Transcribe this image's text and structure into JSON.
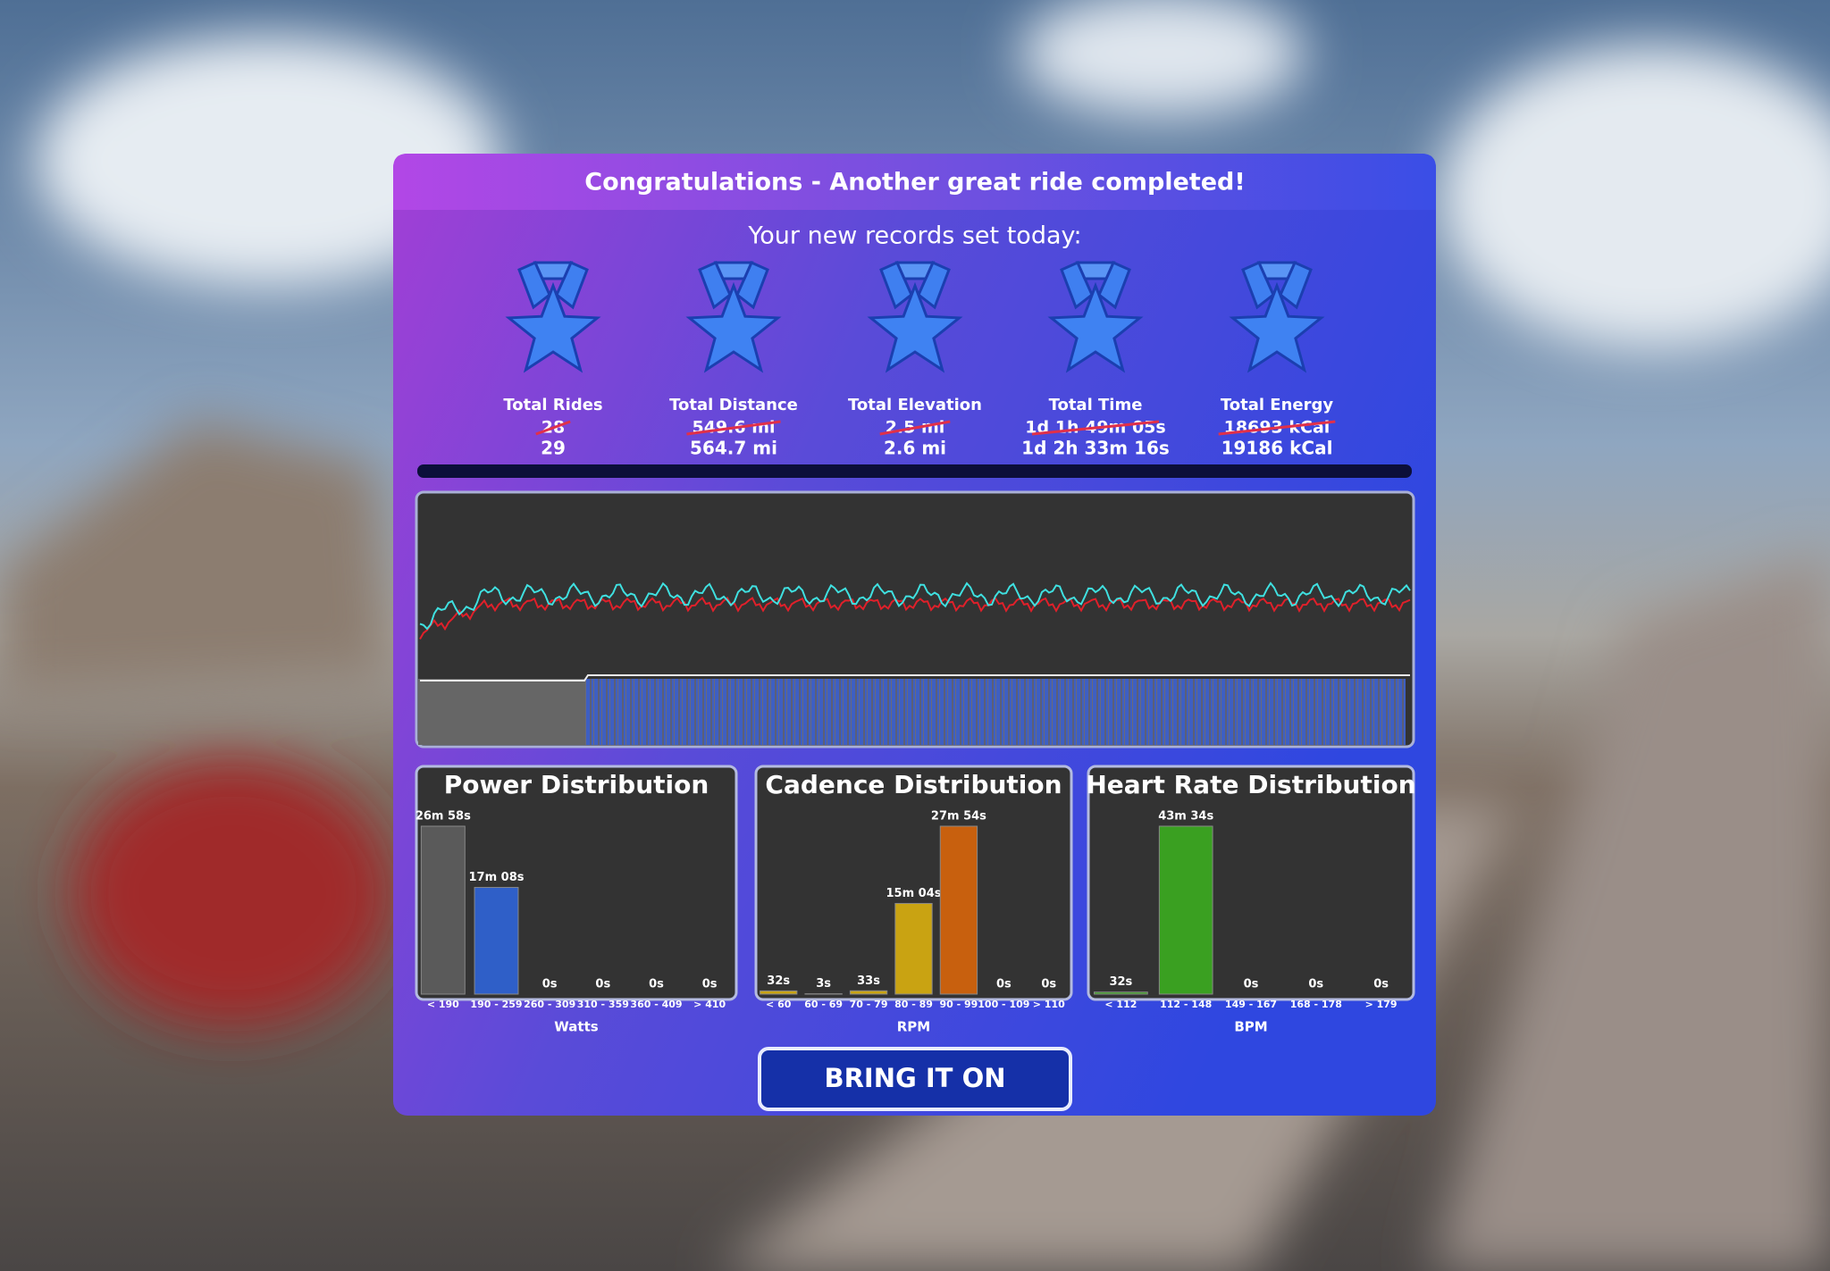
{
  "header": {
    "title": "Congratulations - Another great ride completed!"
  },
  "records": {
    "heading": "Your new records set today:",
    "items": [
      {
        "label": "Total Rides",
        "old": "28",
        "new": "29"
      },
      {
        "label": "Total Distance",
        "old": "549.6 mi",
        "new": "564.7 mi"
      },
      {
        "label": "Total Elevation",
        "old": "2.5 mi",
        "new": "2.6 mi"
      },
      {
        "label": "Total Time",
        "old": "1d 1h 49m 05s",
        "new": "1d 2h 33m 16s"
      },
      {
        "label": "Total Energy",
        "old": "18693 kCal",
        "new": "19186 kCal"
      }
    ]
  },
  "chart_data": [
    {
      "type": "bar",
      "title": "Power Distribution",
      "categories": [
        "< 190",
        "190 - 259",
        "260 - 309",
        "310 - 359",
        "360 - 409",
        "> 410"
      ],
      "values": [
        1618,
        1028,
        0,
        0,
        0,
        0
      ],
      "value_labels": [
        "26m 58s",
        "17m 08s",
        "0s",
        "0s",
        "0s",
        "0s"
      ],
      "colors": [
        "#5a5a5a",
        "#2f5fc8",
        "#5a5a5a",
        "#5a5a5a",
        "#5a5a5a",
        "#5a5a5a"
      ],
      "x_label": "Watts"
    },
    {
      "type": "bar",
      "title": "Cadence Distribution",
      "categories": [
        "< 60",
        "60 - 69",
        "70 - 79",
        "80 - 89",
        "90 - 99",
        "100 - 109",
        "> 110"
      ],
      "values": [
        32,
        3,
        33,
        904,
        1674,
        0,
        0
      ],
      "value_labels": [
        "32s",
        "3s",
        "33s",
        "15m 04s",
        "27m 54s",
        "0s",
        "0s"
      ],
      "colors": [
        "#c9a312",
        "#c9a312",
        "#c9a312",
        "#c9a312",
        "#c8600e",
        "#c8600e",
        "#c8600e"
      ],
      "x_label": "RPM"
    },
    {
      "type": "bar",
      "title": "Heart Rate Distribution",
      "categories": [
        "< 112",
        "112 - 148",
        "149 - 167",
        "168 - 178",
        "> 179"
      ],
      "values": [
        32,
        2614,
        0,
        0,
        0
      ],
      "value_labels": [
        "32s",
        "43m 34s",
        "0s",
        "0s",
        "0s"
      ],
      "colors": [
        "#3aa021",
        "#3aa021",
        "#3aa021",
        "#3aa021",
        "#3aa021"
      ],
      "x_label": "BPM"
    }
  ],
  "button": {
    "label": "BRING IT ON"
  }
}
